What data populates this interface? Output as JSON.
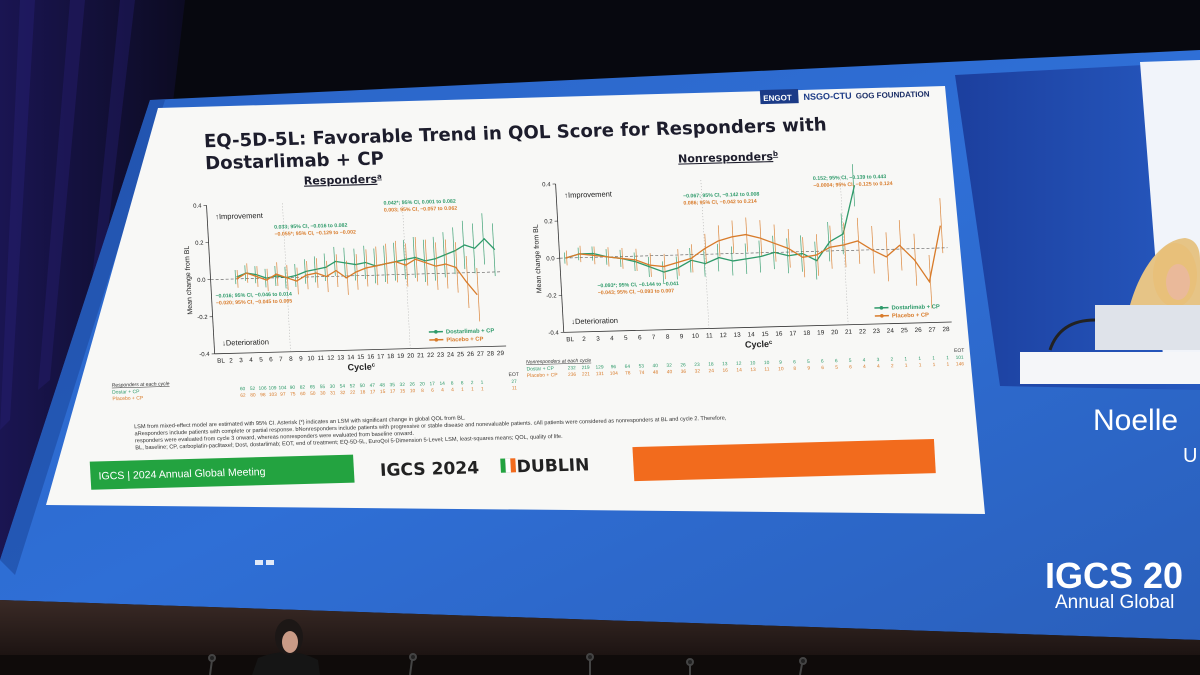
{
  "slide": {
    "title_line1": "EQ-5D-5L: Favorable Trend in QOL Score for Responders with",
    "title_line2": "Dostarlimab + CP",
    "logos": [
      "ENGOT",
      "NSGO-CTU",
      "GOG FOUNDATION"
    ],
    "footer_left": "IGCS | 2024 Annual Global Meeting",
    "footer_center_prefix": "IGCS 2024",
    "footer_center_suffix": "DUBLIN",
    "footnotes": [
      "LSM from mixed-effect model are estimated with 95% CI. Asterisk (*) indicates an LSM with significant change in global QOL from BL.",
      "aResponders include patients with complete or partial response. bNonresponders include patients with progressive or stable disease and nonevaluable patients. cAll patients were considered as nonresponders at BL and cycle 2. Therefore,",
      "responders were evaluated from cycle 3 onward, whereas nonresponders were evaluated from baseline onward.",
      "BL, baseline; CP, carboplatin-paclitaxel; Dost, dostarlimab; EOT, end of treatment; EQ-5D-5L, EuroQol 5-Dimension 5-Level; LSM, least-squares means; QOL, quality of life."
    ]
  },
  "chart_data": [
    {
      "type": "line",
      "title": "Responders",
      "title_sup": "a",
      "ylabel": "Mean change from BL",
      "xlabel": "Cycle",
      "xlabel_sup": "c",
      "ylim": [
        -0.4,
        0.4
      ],
      "yticks": [
        "0.4",
        "0.2",
        "0.0",
        "-0.2",
        "-0.4"
      ],
      "categories": [
        "BL",
        "2",
        "3",
        "4",
        "5",
        "6",
        "7",
        "8",
        "9",
        "10",
        "11",
        "12",
        "13",
        "14",
        "15",
        "16",
        "17",
        "18",
        "19",
        "20",
        "21",
        "22",
        "23",
        "24",
        "25",
        "26",
        "27",
        "28",
        "29"
      ],
      "improvement_label": "Improvement",
      "deterioration_label": "Deterioration",
      "series": [
        {
          "name": "Dostarlimab + CP",
          "color": "#2e9a6a",
          "values": [
            null,
            null,
            0.01,
            0.03,
            0.02,
            0.0,
            0.01,
            0.0,
            0.01,
            0.03,
            0.04,
            0.05,
            0.08,
            0.07,
            0.06,
            0.07,
            0.05,
            0.06,
            0.07,
            0.08,
            0.09,
            0.07,
            0.08,
            0.1,
            0.12,
            0.15,
            0.13,
            0.18,
            0.12
          ]
        },
        {
          "name": "Placebo + CP",
          "color": "#d87b2a",
          "values": [
            null,
            null,
            0.0,
            0.03,
            0.01,
            -0.01,
            0.02,
            0.0,
            -0.02,
            0.01,
            0.02,
            0.0,
            0.03,
            -0.01,
            0.02,
            0.04,
            0.05,
            0.06,
            0.07,
            0.05,
            0.08,
            0.06,
            0.04,
            0.05,
            0.03,
            -0.05,
            -0.12,
            null,
            null
          ]
        }
      ],
      "annotations": [
        "0.042*; 95% CI, 0.001 to 0.082",
        "0.003; 95% CI, −0.057 to 0.062",
        "0.033; 95% CI, −0.016 to 0.082",
        "−0.055*; 95% CI, −0.129 to −0.002",
        "−0.016; 95% CI, −0.046 to 0.014",
        "−0.020; 95% CI, −0.045 to 0.005"
      ],
      "at_risk_title": "Responders at each cycle",
      "at_risk_rows": [
        {
          "label": "Dostar + CP",
          "values": [
            "60",
            "52",
            "106",
            "109",
            "104",
            "90",
            "82",
            "65",
            "55",
            "30",
            "54",
            "52",
            "50",
            "47",
            "48",
            "35",
            "32",
            "26",
            "20",
            "17",
            "14",
            "8",
            "8",
            "2",
            "1"
          ],
          "eot": "27"
        },
        {
          "label": "Placebo + CP",
          "values": [
            "62",
            "80",
            "98",
            "103",
            "97",
            "75",
            "60",
            "50",
            "30",
            "31",
            "32",
            "22",
            "18",
            "17",
            "15",
            "17",
            "15",
            "10",
            "8",
            "6",
            "4",
            "4",
            "1",
            "1",
            "1"
          ],
          "eot": "11"
        }
      ],
      "eot_label": "EOT",
      "legend": "bottom-right"
    },
    {
      "type": "line",
      "title": "Nonresponders",
      "title_sup": "b",
      "ylabel": "Mean change from BL",
      "xlabel": "Cycle",
      "xlabel_sup": "c",
      "ylim": [
        -0.4,
        0.4
      ],
      "yticks": [
        "0.4",
        "0.2",
        "0.0",
        "-0.2",
        "-0.4"
      ],
      "categories": [
        "BL",
        "2",
        "3",
        "4",
        "5",
        "6",
        "7",
        "8",
        "9",
        "10",
        "11",
        "12",
        "13",
        "14",
        "15",
        "16",
        "17",
        "18",
        "19",
        "20",
        "21",
        "22",
        "23",
        "24",
        "25",
        "26",
        "27",
        "28"
      ],
      "improvement_label": "Improvement",
      "deterioration_label": "Deterioration",
      "series": [
        {
          "name": "Dostarlimab + CP",
          "color": "#2e9a6a",
          "values": [
            0.0,
            0.02,
            0.02,
            0.0,
            -0.01,
            -0.03,
            -0.06,
            -0.09,
            -0.07,
            -0.03,
            -0.05,
            -0.02,
            -0.04,
            -0.03,
            -0.02,
            0.0,
            -0.02,
            -0.01,
            -0.05,
            0.05,
            0.09,
            0.35,
            null,
            null,
            null,
            null,
            null,
            null
          ]
        },
        {
          "name": "Placebo + CP",
          "color": "#d87b2a",
          "values": [
            0.0,
            0.02,
            0.01,
            0.0,
            -0.01,
            -0.02,
            -0.05,
            -0.06,
            -0.04,
            -0.02,
            0.03,
            0.07,
            0.09,
            0.1,
            0.08,
            0.05,
            0.02,
            -0.03,
            -0.02,
            0.02,
            0.03,
            0.05,
            0.0,
            -0.04,
            0.02,
            -0.06,
            -0.18,
            0.12
          ]
        }
      ],
      "annotations": [
        "0.152; 95% CI, −0.139 to 0.443",
        "−0.0004; 95% CI, −0.125 to 0.124",
        "−0.067; 95% CI, −0.142 to 0.008",
        "0.086; 95% CI, −0.042 to 0.214",
        "−0.093*; 95% CI, −0.144 to −0.041",
        "−0.043; 95% CI, −0.093 to 0.007"
      ],
      "at_risk_title": "Nonresponders at each cycle",
      "at_risk_rows": [
        {
          "label": "Dostar + CP",
          "values": [
            "232",
            "219",
            "129",
            "96",
            "64",
            "53",
            "40",
            "32",
            "26",
            "23",
            "18",
            "13",
            "12",
            "10",
            "10",
            "9",
            "6",
            "5",
            "6",
            "6",
            "5",
            "4",
            "3",
            "2",
            "1",
            "1",
            "1",
            "1"
          ],
          "eot": "101"
        },
        {
          "label": "Placebo + CP",
          "values": [
            "236",
            "221",
            "131",
            "104",
            "78",
            "74",
            "48",
            "40",
            "36",
            "32",
            "24",
            "16",
            "14",
            "13",
            "11",
            "10",
            "8",
            "9",
            "6",
            "5",
            "6",
            "4",
            "4",
            "2",
            "1",
            "1",
            "1",
            "1"
          ],
          "eot": "146"
        }
      ],
      "eot_label": "EOT",
      "legend": "bottom-right"
    }
  ],
  "stage": {
    "speaker_name": "Noelle",
    "speaker_name_rest": "U",
    "brand": "IGCS 20",
    "brand_sub": "Annual Global"
  }
}
